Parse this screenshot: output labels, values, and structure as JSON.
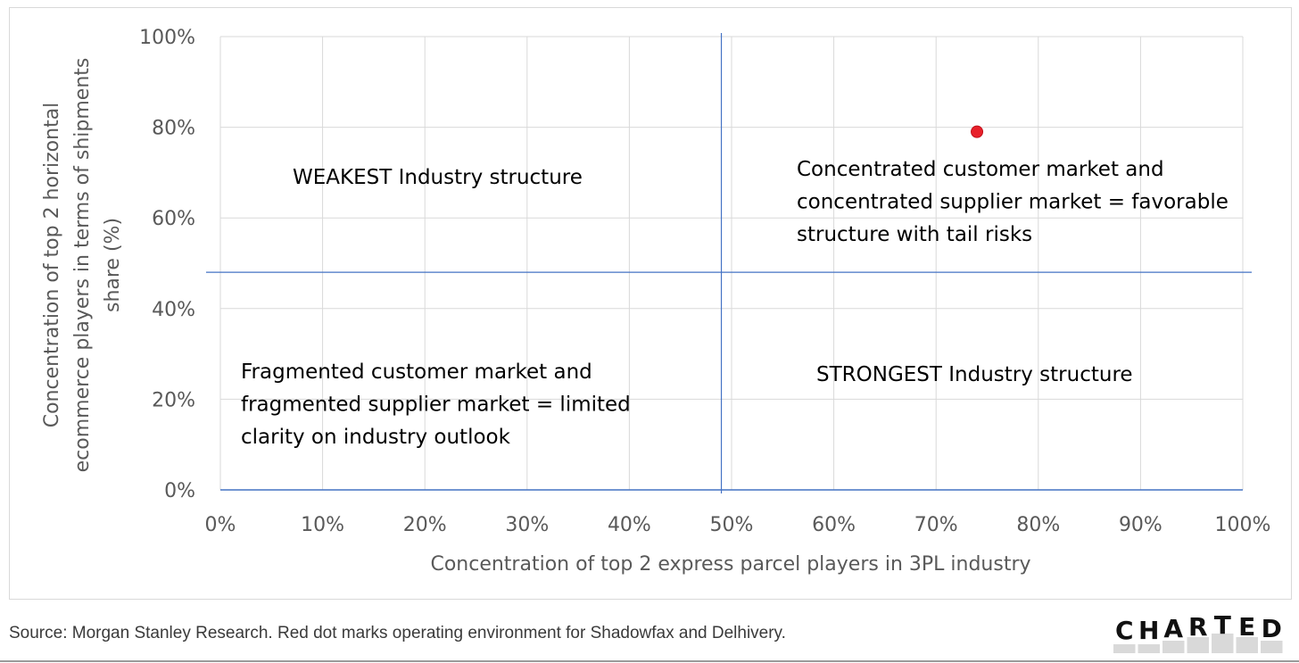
{
  "chart_data": {
    "type": "scatter",
    "title": "",
    "xlabel": "Concentration of top 2 express parcel players in 3PL industry",
    "ylabel_lines": [
      "Concentration of top 2 horizontal",
      "ecommerce players in terms of shipments",
      "share (%)"
    ],
    "xlim": [
      0,
      100
    ],
    "ylim": [
      0,
      100
    ],
    "x_ticks": [
      "0%",
      "10%",
      "20%",
      "30%",
      "40%",
      "50%",
      "60%",
      "70%",
      "80%",
      "90%",
      "100%"
    ],
    "y_ticks": [
      "0%",
      "20%",
      "40%",
      "60%",
      "80%",
      "100%"
    ],
    "grid": true,
    "divider_x": 49,
    "divider_y": 48,
    "points": [
      {
        "x": 74,
        "y": 79,
        "color": "#e8202a"
      }
    ],
    "quadrants": {
      "top_left": [
        "WEAKEST Industry structure"
      ],
      "top_right": [
        "Concentrated customer market and",
        "concentrated supplier market = favorable",
        "structure with tail risks"
      ],
      "bottom_left": [
        "Fragmented customer market and",
        "fragmented supplier market = limited",
        "clarity on industry outlook"
      ],
      "bottom_right": [
        "STRONGEST Industry structure"
      ]
    },
    "colors": {
      "grid": "#d9d9d9",
      "divider": "#4472c4",
      "point": "#e8202a"
    }
  },
  "footer": {
    "source": "Source: Morgan Stanley Research. Red dot marks operating environment for Shadowfax and Delhivery."
  },
  "brand": {
    "letters": [
      "C",
      "H",
      "A",
      "R",
      "T",
      "E",
      "D"
    ]
  }
}
